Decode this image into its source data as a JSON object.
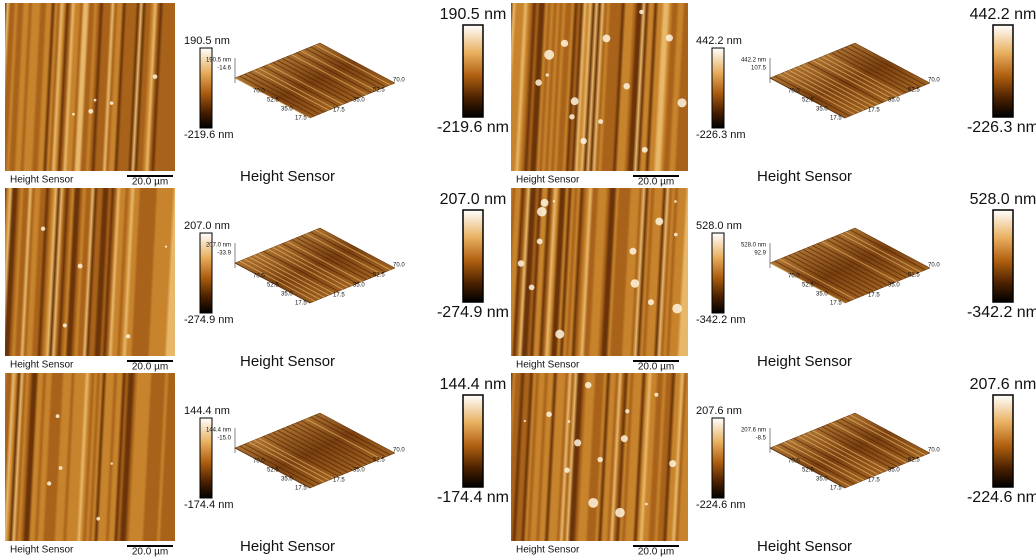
{
  "panels": [
    {
      "image_label": "Height Sensor",
      "scale_bar": "20.0 µm",
      "bar_max": "190.5 nm",
      "bar_min": "-219.6 nm",
      "surface_z": [
        "190.5 nm",
        "-14.6"
      ],
      "surface_axis": [
        "70.0",
        "52.5",
        "35.0",
        "17.5"
      ],
      "caption": "Height Sensor",
      "big_max": "190.5 nm",
      "big_min": "-219.6 nm"
    },
    {
      "image_label": "Height Sensor",
      "scale_bar": "20.0 µm",
      "bar_max": "442.2 nm",
      "bar_min": "-226.3 nm",
      "surface_z": [
        "442.2 nm",
        "107.5"
      ],
      "surface_axis": [
        "70.0",
        "52.5",
        "35.0",
        "17.5"
      ],
      "caption": "Height Sensor",
      "big_max": "442.2 nm",
      "big_min": "-226.3 nm"
    },
    {
      "image_label": "Height Sensor",
      "scale_bar": "20.0 µm",
      "bar_max": "207.0 nm",
      "bar_min": "-274.9 nm",
      "surface_z": [
        "207.0 nm",
        "-33.9"
      ],
      "surface_axis": [
        "70.0",
        "52.5",
        "35.0",
        "17.5"
      ],
      "caption": "Height Sensor",
      "big_max": "207.0 nm",
      "big_min": "-274.9 nm"
    },
    {
      "image_label": "Height Sensor",
      "scale_bar": "20.0 µm",
      "bar_max": "528.0 nm",
      "bar_min": "-342.2 nm",
      "surface_z": [
        "528.0 nm",
        "92.9"
      ],
      "surface_axis": [
        "70.0",
        "52.5",
        "35.0",
        "17.5"
      ],
      "caption": "Height Sensor",
      "big_max": "528.0 nm",
      "big_min": "-342.2 nm"
    },
    {
      "image_label": "Height Sensor",
      "scale_bar": "20.0 µm",
      "bar_max": "144.4 nm",
      "bar_min": "-174.4 nm",
      "surface_z": [
        "144.4 nm",
        "-15.0"
      ],
      "surface_axis": [
        "70.0",
        "52.5",
        "35.0",
        "17.5"
      ],
      "caption": "Height Sensor",
      "big_max": "144.4 nm",
      "big_min": "-174.4 nm"
    },
    {
      "image_label": "Height Sensor",
      "scale_bar": "20.0 µm",
      "bar_max": "207.6 nm",
      "bar_min": "-224.6 nm",
      "surface_z": [
        "207.6 nm",
        "-8.5"
      ],
      "surface_axis": [
        "70.0",
        "52.5",
        "35.0",
        "17.5"
      ],
      "caption": "Height Sensor",
      "big_max": "207.6 nm",
      "big_min": "-224.6 nm"
    }
  ]
}
